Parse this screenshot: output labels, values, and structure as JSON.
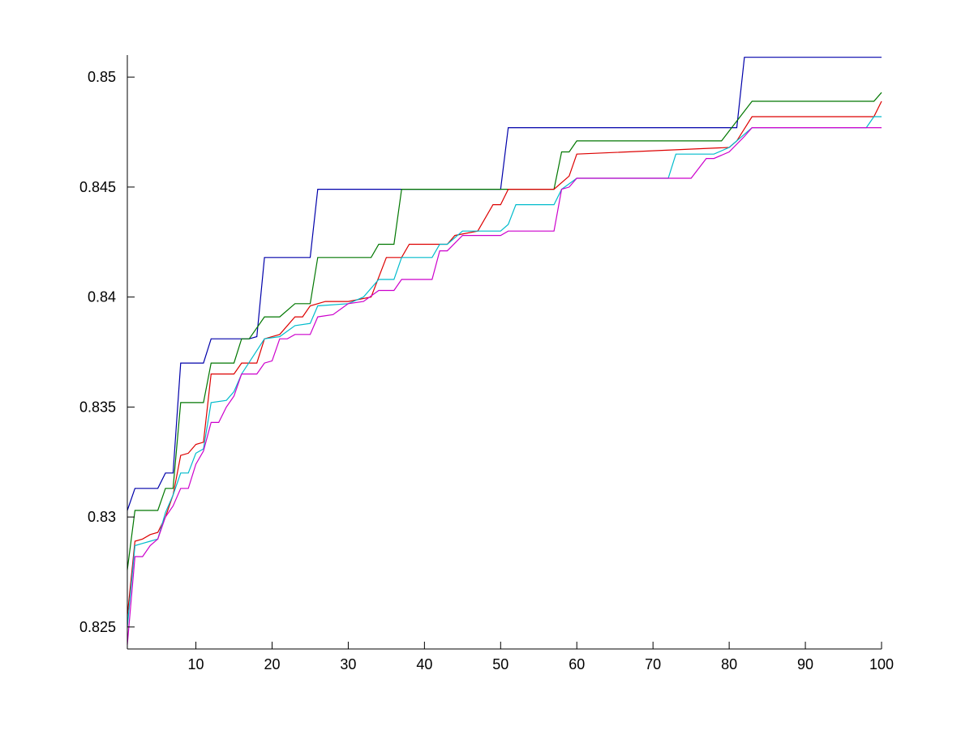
{
  "chart_data": {
    "type": "line",
    "title": "",
    "xlabel": "",
    "ylabel": "",
    "xlim": [
      1,
      100
    ],
    "ylim": [
      0.824,
      0.851
    ],
    "xticks": [
      10,
      20,
      30,
      40,
      50,
      60,
      70,
      80,
      90,
      100
    ],
    "xtick_labels": [
      "10",
      "20",
      "30",
      "40",
      "50",
      "60",
      "70",
      "80",
      "90",
      "100"
    ],
    "yticks": [
      0.825,
      0.83,
      0.835,
      0.84,
      0.845,
      0.85
    ],
    "ytick_labels": [
      "0.825",
      "0.83",
      "0.835",
      "0.84",
      "0.845",
      "0.85"
    ],
    "grid": false,
    "legend": "none",
    "series": [
      {
        "color": "#0000aa",
        "points": [
          [
            1,
            0.8303
          ],
          [
            2,
            0.8313
          ],
          [
            3,
            0.8313
          ],
          [
            5,
            0.8313
          ],
          [
            6,
            0.832
          ],
          [
            7,
            0.832
          ],
          [
            8,
            0.837
          ],
          [
            11,
            0.837
          ],
          [
            12,
            0.8381
          ],
          [
            17,
            0.8381
          ],
          [
            18,
            0.8382
          ],
          [
            19,
            0.8418
          ],
          [
            25,
            0.8418
          ],
          [
            26,
            0.8449
          ],
          [
            50,
            0.8449
          ],
          [
            51,
            0.8477
          ],
          [
            81,
            0.8477
          ],
          [
            82,
            0.8509
          ],
          [
            100,
            0.8509
          ]
        ]
      },
      {
        "color": "#007700",
        "points": [
          [
            1,
            0.8276
          ],
          [
            2,
            0.8303
          ],
          [
            3,
            0.8303
          ],
          [
            5,
            0.8303
          ],
          [
            6,
            0.8313
          ],
          [
            7,
            0.8313
          ],
          [
            8,
            0.8352
          ],
          [
            11,
            0.8352
          ],
          [
            12,
            0.837
          ],
          [
            15,
            0.837
          ],
          [
            16,
            0.8381
          ],
          [
            17,
            0.8381
          ],
          [
            19,
            0.8391
          ],
          [
            21,
            0.8391
          ],
          [
            23,
            0.8397
          ],
          [
            25,
            0.8397
          ],
          [
            26,
            0.8418
          ],
          [
            33,
            0.8418
          ],
          [
            34,
            0.8424
          ],
          [
            36,
            0.8424
          ],
          [
            37,
            0.8449
          ],
          [
            57,
            0.8449
          ],
          [
            58,
            0.8466
          ],
          [
            59,
            0.8466
          ],
          [
            60,
            0.8471
          ],
          [
            79,
            0.8471
          ],
          [
            83,
            0.8489
          ],
          [
            99,
            0.8489
          ],
          [
            100,
            0.8493
          ]
        ]
      },
      {
        "color": "#dd0000",
        "points": [
          [
            1,
            0.8255
          ],
          [
            2,
            0.8289
          ],
          [
            3,
            0.829
          ],
          [
            4,
            0.8292
          ],
          [
            5,
            0.8293
          ],
          [
            6,
            0.83
          ],
          [
            7,
            0.831
          ],
          [
            8,
            0.8328
          ],
          [
            9,
            0.8329
          ],
          [
            10,
            0.8333
          ],
          [
            11,
            0.8334
          ],
          [
            12,
            0.8365
          ],
          [
            15,
            0.8365
          ],
          [
            16,
            0.837
          ],
          [
            18,
            0.837
          ],
          [
            19,
            0.8381
          ],
          [
            21,
            0.8383
          ],
          [
            23,
            0.8391
          ],
          [
            24,
            0.8391
          ],
          [
            25,
            0.8396
          ],
          [
            27,
            0.8398
          ],
          [
            30,
            0.8398
          ],
          [
            33,
            0.84
          ],
          [
            35,
            0.8418
          ],
          [
            37,
            0.8418
          ],
          [
            38,
            0.8424
          ],
          [
            43,
            0.8424
          ],
          [
            44,
            0.8428
          ],
          [
            47,
            0.843
          ],
          [
            49,
            0.8442
          ],
          [
            50,
            0.8442
          ],
          [
            51,
            0.8449
          ],
          [
            57,
            0.8449
          ],
          [
            59,
            0.8455
          ],
          [
            60,
            0.8465
          ],
          [
            80,
            0.8468
          ],
          [
            81,
            0.8471
          ],
          [
            83,
            0.8482
          ],
          [
            99,
            0.8482
          ],
          [
            100,
            0.8489
          ]
        ]
      },
      {
        "color": "#00bbcc",
        "points": [
          [
            1,
            0.825
          ],
          [
            2,
            0.8287
          ],
          [
            3,
            0.8288
          ],
          [
            4,
            0.8289
          ],
          [
            5,
            0.829
          ],
          [
            6,
            0.8302
          ],
          [
            7,
            0.831
          ],
          [
            8,
            0.832
          ],
          [
            9,
            0.832
          ],
          [
            10,
            0.8329
          ],
          [
            11,
            0.8331
          ],
          [
            12,
            0.8352
          ],
          [
            14,
            0.8353
          ],
          [
            15,
            0.8357
          ],
          [
            16,
            0.8365
          ],
          [
            19,
            0.8381
          ],
          [
            21,
            0.8382
          ],
          [
            23,
            0.8387
          ],
          [
            25,
            0.8388
          ],
          [
            26,
            0.8396
          ],
          [
            30,
            0.8397
          ],
          [
            32,
            0.84
          ],
          [
            34,
            0.8408
          ],
          [
            36,
            0.8408
          ],
          [
            37,
            0.8418
          ],
          [
            41,
            0.8418
          ],
          [
            42,
            0.8424
          ],
          [
            43,
            0.8424
          ],
          [
            45,
            0.843
          ],
          [
            50,
            0.843
          ],
          [
            51,
            0.8433
          ],
          [
            52,
            0.8442
          ],
          [
            57,
            0.8442
          ],
          [
            58,
            0.8449
          ],
          [
            60,
            0.8454
          ],
          [
            72,
            0.8454
          ],
          [
            73,
            0.8465
          ],
          [
            78,
            0.8465
          ],
          [
            80,
            0.8468
          ],
          [
            83,
            0.8477
          ],
          [
            98,
            0.8477
          ],
          [
            99,
            0.8482
          ],
          [
            100,
            0.8482
          ]
        ]
      },
      {
        "color": "#cc00cc",
        "points": [
          [
            1,
            0.8242
          ],
          [
            2,
            0.8282
          ],
          [
            3,
            0.8282
          ],
          [
            4,
            0.8287
          ],
          [
            5,
            0.829
          ],
          [
            6,
            0.83
          ],
          [
            7,
            0.8305
          ],
          [
            8,
            0.8313
          ],
          [
            9,
            0.8313
          ],
          [
            10,
            0.8324
          ],
          [
            11,
            0.833
          ],
          [
            12,
            0.8343
          ],
          [
            13,
            0.8343
          ],
          [
            14,
            0.835
          ],
          [
            15,
            0.8355
          ],
          [
            16,
            0.8365
          ],
          [
            18,
            0.8365
          ],
          [
            19,
            0.837
          ],
          [
            20,
            0.8371
          ],
          [
            21,
            0.8381
          ],
          [
            22,
            0.8381
          ],
          [
            23,
            0.8383
          ],
          [
            25,
            0.8383
          ],
          [
            26,
            0.8391
          ],
          [
            28,
            0.8392
          ],
          [
            30,
            0.8397
          ],
          [
            32,
            0.8398
          ],
          [
            34,
            0.8403
          ],
          [
            36,
            0.8403
          ],
          [
            37,
            0.8408
          ],
          [
            41,
            0.8408
          ],
          [
            42,
            0.8421
          ],
          [
            43,
            0.8421
          ],
          [
            45,
            0.8428
          ],
          [
            50,
            0.8428
          ],
          [
            51,
            0.843
          ],
          [
            57,
            0.843
          ],
          [
            58,
            0.8449
          ],
          [
            59,
            0.845
          ],
          [
            60,
            0.8454
          ],
          [
            75,
            0.8454
          ],
          [
            77,
            0.8463
          ],
          [
            78,
            0.8463
          ],
          [
            80,
            0.8466
          ],
          [
            82,
            0.8473
          ],
          [
            83,
            0.8477
          ],
          [
            100,
            0.8477
          ]
        ]
      }
    ]
  }
}
